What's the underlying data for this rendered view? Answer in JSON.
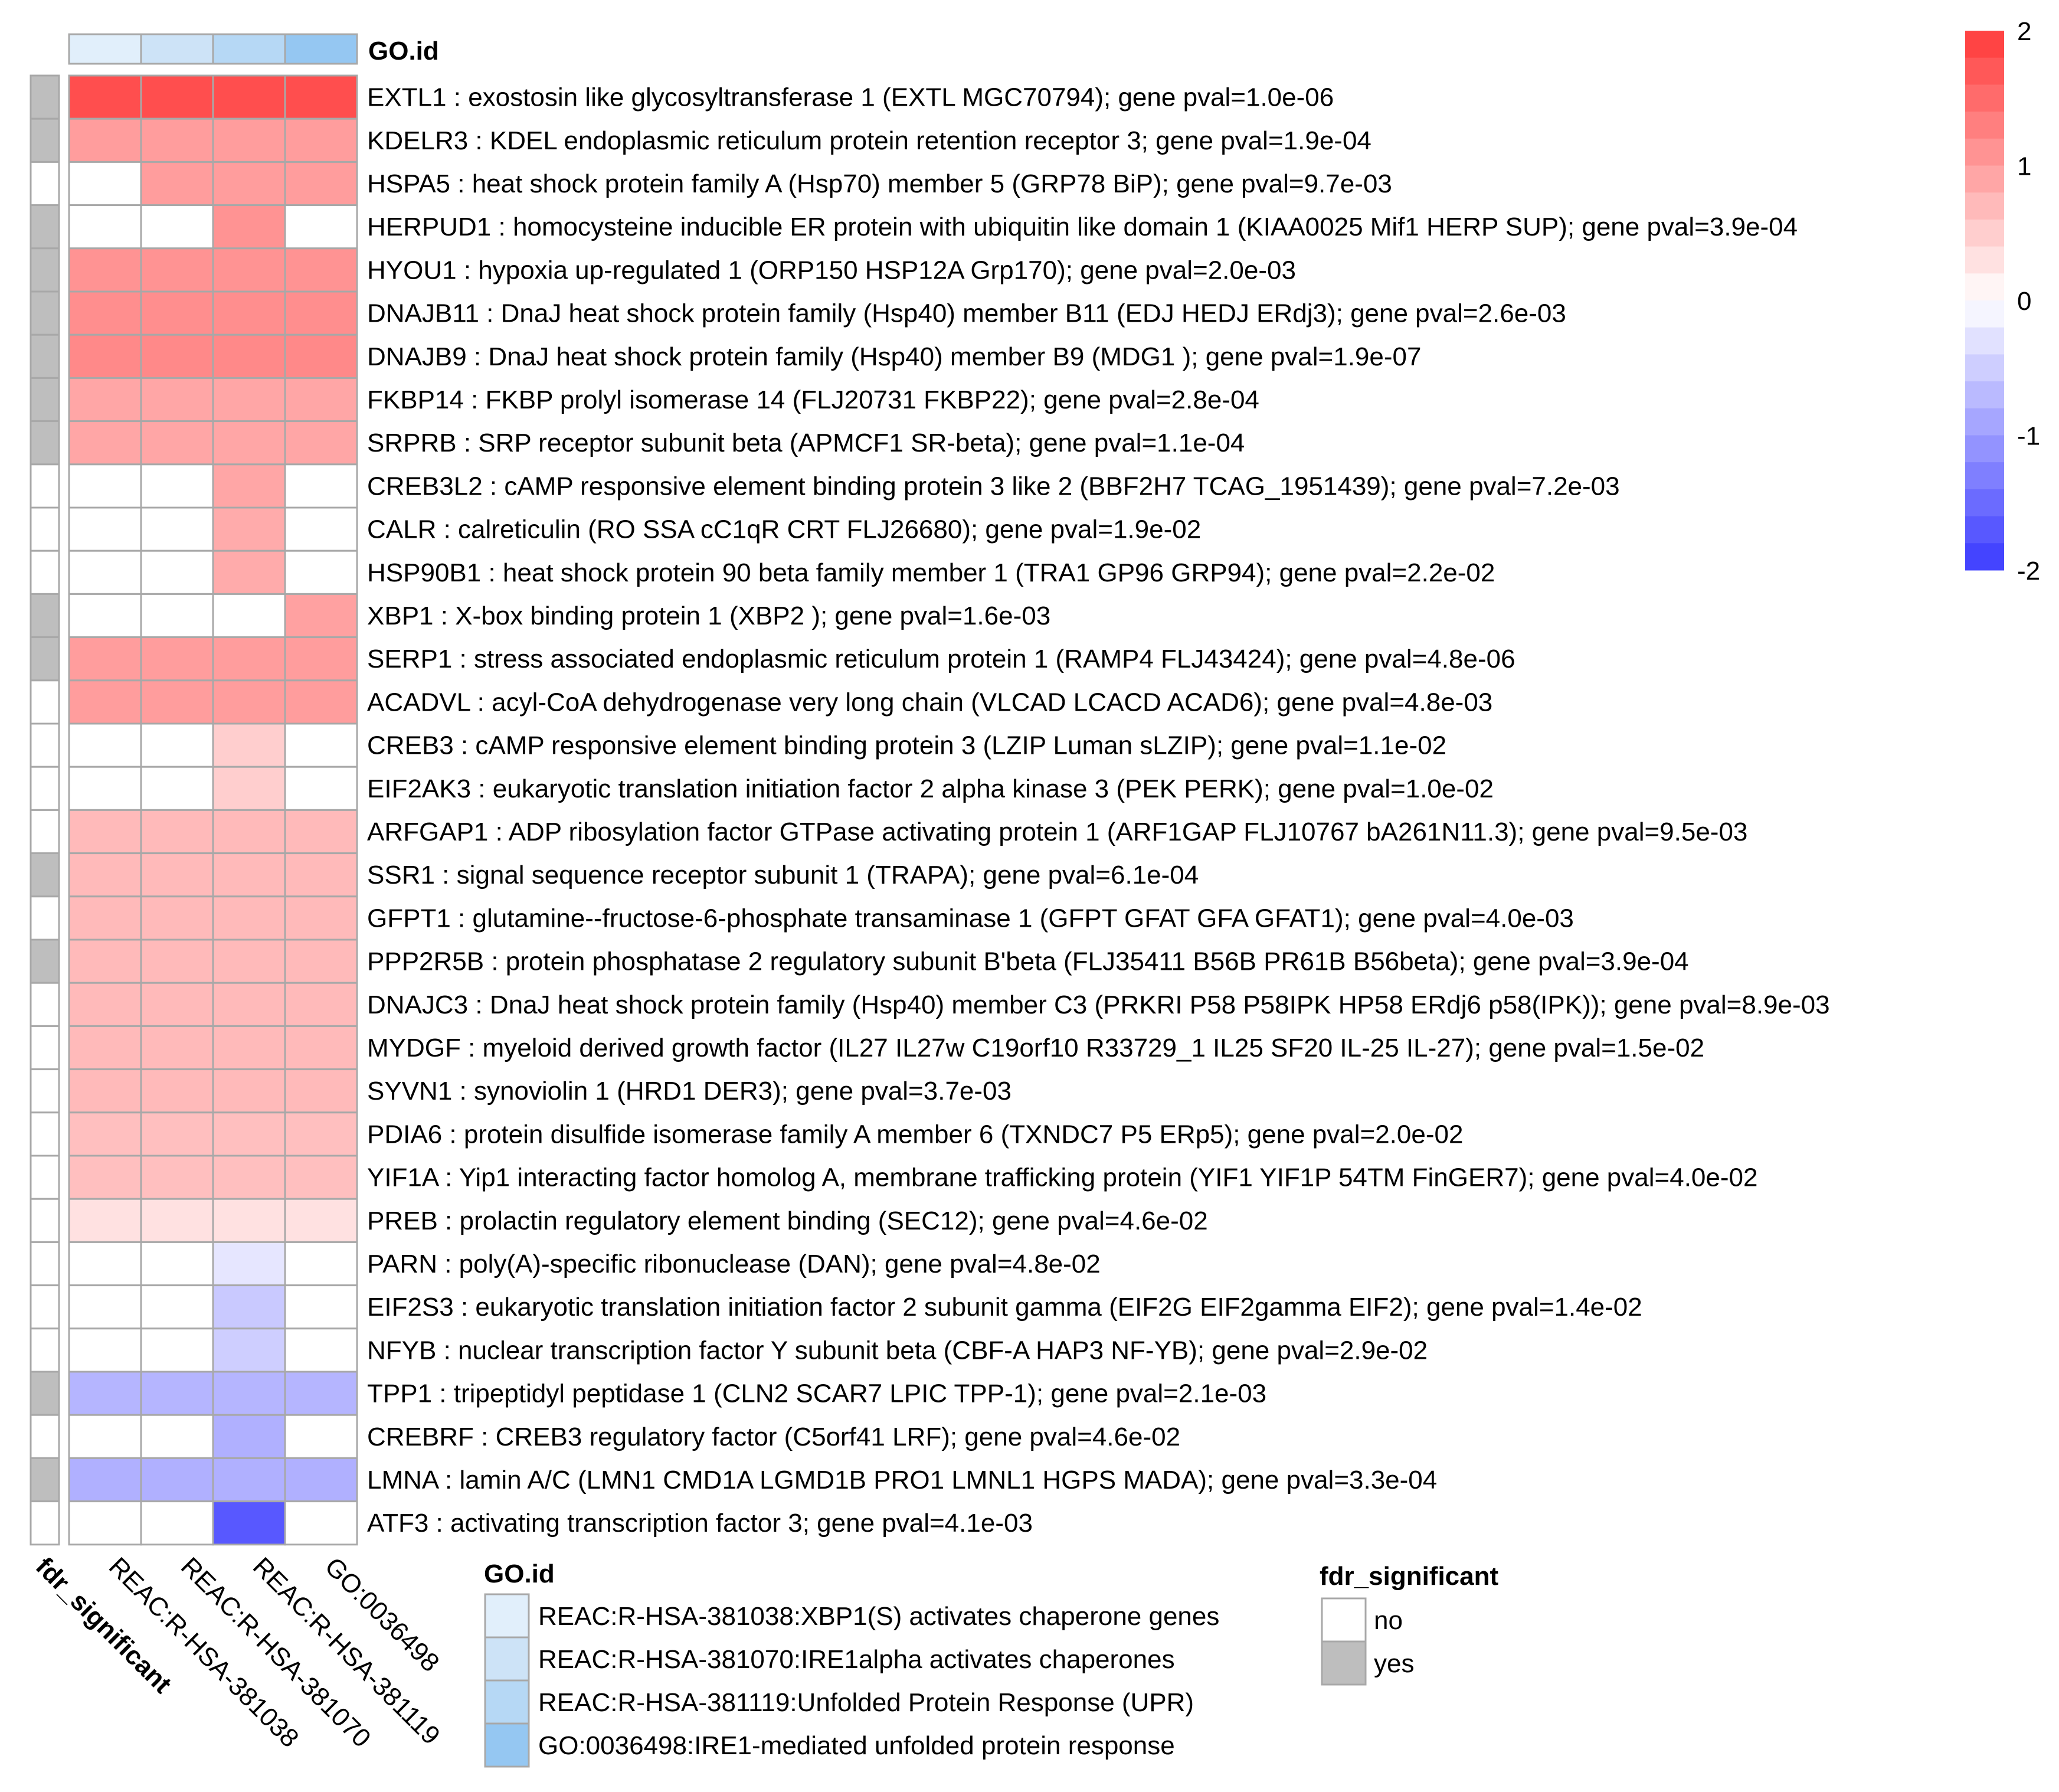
{
  "chart_data": {
    "type": "heatmap",
    "colors": {
      "high": "#FF3A3A",
      "mid": "#FFFFFF",
      "low": "#3A3AFF",
      "significant_yes": "#BEBEBE",
      "significant_no": "#FFFFFF",
      "grid": "#A8A8A8"
    },
    "value_range": [
      -2,
      2
    ],
    "scale_ticks": [
      "2",
      "1",
      "0",
      "-1",
      "-2"
    ],
    "top_annotation": {
      "title": "GO.id",
      "colors": [
        "#E1EFFB",
        "#CDE3F7",
        "#B6D8F5",
        "#95C7F2"
      ]
    },
    "columns": [
      "REAC:R-HSA-381038",
      "REAC:R-HSA-381070",
      "REAC:R-HSA-381119",
      "GO:0036498"
    ],
    "row_annotation_label": "fdr_significant",
    "rows": [
      {
        "label": "EXTL1 : exostosin like glycosyltransferase 1 (EXTL MGC70794); gene pval=1.0e-06",
        "significant": true,
        "values": [
          1.8,
          1.8,
          1.8,
          1.8
        ]
      },
      {
        "label": "KDELR3 : KDEL endoplasmic reticulum protein retention receptor 3; gene pval=1.9e-04",
        "significant": true,
        "values": [
          1.0,
          1.0,
          1.0,
          1.0
        ]
      },
      {
        "label": "HSPA5 : heat shock protein family A (Hsp70) member 5 (GRP78 BiP); gene pval=9.7e-03",
        "significant": false,
        "values": [
          0,
          1.0,
          1.0,
          1.0
        ]
      },
      {
        "label": "HERPUD1 : homocysteine inducible ER protein with ubiquitin like domain 1 (KIAA0025 Mif1 HERP SUP); gene pval=3.9e-04",
        "significant": true,
        "values": [
          0,
          0,
          1.1,
          0
        ]
      },
      {
        "label": "HYOU1 : hypoxia up-regulated 1 (ORP150 HSP12A Grp170); gene pval=2.0e-03",
        "significant": true,
        "values": [
          1.1,
          1.1,
          1.1,
          1.1
        ]
      },
      {
        "label": "DNAJB11 : DnaJ heat shock protein family (Hsp40) member B11 (EDJ HEDJ ERdj3); gene pval=2.6e-03",
        "significant": true,
        "values": [
          1.15,
          1.15,
          1.15,
          1.15
        ]
      },
      {
        "label": "DNAJB9 : DnaJ heat shock protein family (Hsp40) member B9 (MDG1 ); gene pval=1.9e-07",
        "significant": true,
        "values": [
          1.2,
          1.2,
          1.2,
          1.2
        ]
      },
      {
        "label": "FKBP14 : FKBP prolyl isomerase 14 (FLJ20731 FKBP22); gene pval=2.8e-04",
        "significant": true,
        "values": [
          0.9,
          0.9,
          0.9,
          0.9
        ]
      },
      {
        "label": "SRPRB : SRP receptor subunit beta (APMCF1 SR-beta); gene pval=1.1e-04",
        "significant": true,
        "values": [
          0.9,
          0.9,
          0.9,
          0.9
        ]
      },
      {
        "label": "CREB3L2 : cAMP responsive element binding protein 3 like 2 (BBF2H7 TCAG_1951439); gene pval=7.2e-03",
        "significant": false,
        "values": [
          0,
          0,
          0.9,
          0
        ]
      },
      {
        "label": "CALR : calreticulin (RO SSA cC1qR CRT FLJ26680); gene pval=1.9e-02",
        "significant": false,
        "values": [
          0,
          0,
          0.85,
          0
        ]
      },
      {
        "label": "HSP90B1 : heat shock protein 90 beta family member 1 (TRA1 GP96 GRP94); gene pval=2.2e-02",
        "significant": false,
        "values": [
          0,
          0,
          0.85,
          0
        ]
      },
      {
        "label": "XBP1 : X-box binding protein 1 (XBP2 ); gene pval=1.6e-03",
        "significant": true,
        "values": [
          0,
          0,
          0,
          0.95
        ]
      },
      {
        "label": "SERP1 : stress associated endoplasmic reticulum protein 1 (RAMP4 FLJ43424); gene pval=4.8e-06",
        "significant": true,
        "values": [
          1.0,
          1.0,
          1.0,
          1.0
        ]
      },
      {
        "label": "ACADVL : acyl-CoA dehydrogenase very long chain (VLCAD LCACD ACAD6); gene pval=4.8e-03",
        "significant": false,
        "values": [
          1.0,
          1.0,
          1.0,
          1.0
        ]
      },
      {
        "label": "CREB3 : cAMP responsive element binding protein 3 (LZIP Luman sLZIP); gene pval=1.1e-02",
        "significant": false,
        "values": [
          0,
          0,
          0.5,
          0
        ]
      },
      {
        "label": "EIF2AK3 : eukaryotic translation initiation factor 2 alpha kinase 3 (PEK PERK); gene pval=1.0e-02",
        "significant": false,
        "values": [
          0,
          0,
          0.5,
          0
        ]
      },
      {
        "label": "ARFGAP1 : ADP ribosylation factor GTPase activating protein 1 (ARF1GAP FLJ10767 bA261N11.3); gene pval=9.5e-03",
        "significant": false,
        "values": [
          0.7,
          0.7,
          0.7,
          0.7
        ]
      },
      {
        "label": "SSR1 : signal sequence receptor subunit 1 (TRAPA); gene pval=6.1e-04",
        "significant": true,
        "values": [
          0.7,
          0.7,
          0.7,
          0.7
        ]
      },
      {
        "label": "GFPT1 : glutamine--fructose-6-phosphate transaminase 1 (GFPT GFAT GFA GFAT1); gene pval=4.0e-03",
        "significant": false,
        "values": [
          0.7,
          0.7,
          0.7,
          0.7
        ]
      },
      {
        "label": "PPP2R5B : protein phosphatase 2 regulatory subunit B'beta (FLJ35411 B56B PR61B B56beta); gene pval=3.9e-04",
        "significant": true,
        "values": [
          0.7,
          0.7,
          0.7,
          0.7
        ]
      },
      {
        "label": "DNAJC3 : DnaJ heat shock protein family (Hsp40) member C3 (PRKRI P58 P58IPK HP58 ERdj6 p58(IPK)); gene pval=8.9e-03",
        "significant": false,
        "values": [
          0.7,
          0.7,
          0.7,
          0.7
        ]
      },
      {
        "label": "MYDGF : myeloid derived growth factor (IL27 IL27w C19orf10 R33729_1 IL25 SF20 IL-25 IL-27); gene pval=1.5e-02",
        "significant": false,
        "values": [
          0.7,
          0.7,
          0.7,
          0.7
        ]
      },
      {
        "label": "SYVN1 : synoviolin 1 (HRD1 DER3); gene pval=3.7e-03",
        "significant": false,
        "values": [
          0.7,
          0.7,
          0.7,
          0.7
        ]
      },
      {
        "label": "PDIA6 : protein disulfide isomerase family A member 6 (TXNDC7 P5 ERp5); gene pval=2.0e-02",
        "significant": false,
        "values": [
          0.65,
          0.65,
          0.65,
          0.65
        ]
      },
      {
        "label": "YIF1A : Yip1 interacting factor homolog A, membrane trafficking protein (YIF1 YIF1P 54TM FinGER7); gene pval=4.0e-02",
        "significant": false,
        "values": [
          0.65,
          0.65,
          0.65,
          0.65
        ]
      },
      {
        "label": "PREB : prolactin regulatory element binding (SEC12); gene pval=4.6e-02",
        "significant": false,
        "values": [
          0.3,
          0.3,
          0.3,
          0.3
        ]
      },
      {
        "label": "PARN : poly(A)-specific ribonuclease (DAN); gene pval=4.8e-02",
        "significant": false,
        "values": [
          0,
          0,
          -0.25,
          0
        ]
      },
      {
        "label": "EIF2S3 : eukaryotic translation initiation factor 2 subunit gamma (EIF2G EIF2gamma EIF2); gene pval=1.4e-02",
        "significant": false,
        "values": [
          0,
          0,
          -0.55,
          0
        ]
      },
      {
        "label": "NFYB : nuclear transcription factor Y subunit beta (CBF-A HAP3 NF-YB); gene pval=2.9e-02",
        "significant": false,
        "values": [
          0,
          0,
          -0.5,
          0
        ]
      },
      {
        "label": "TPP1 : tripeptidyl peptidase 1 (CLN2 SCAR7 LPIC TPP-1); gene pval=2.1e-03",
        "significant": true,
        "values": [
          -0.75,
          -0.75,
          -0.75,
          -0.75
        ]
      },
      {
        "label": "CREBRF : CREB3 regulatory factor (C5orf41 LRF); gene pval=4.6e-02",
        "significant": false,
        "values": [
          0,
          0,
          -0.8,
          0
        ]
      },
      {
        "label": "LMNA : lamin A/C (LMN1 CMD1A LGMD1B PRO1 LMNL1 HGPS MADA); gene pval=3.3e-04",
        "significant": true,
        "values": [
          -0.8,
          -0.8,
          -0.8,
          -0.8
        ]
      },
      {
        "label": "ATF3 : activating transcription factor 3; gene pval=4.1e-03",
        "significant": false,
        "values": [
          0,
          0,
          -1.7,
          0
        ]
      }
    ],
    "legend_goid": {
      "title": "GO.id",
      "entries": [
        "REAC:R-HSA-381038:XBP1(S) activates chaperone genes",
        "REAC:R-HSA-381070:IRE1alpha activates chaperones",
        "REAC:R-HSA-381119:Unfolded Protein Response (UPR)",
        "GO:0036498:IRE1-mediated unfolded protein response"
      ]
    },
    "legend_fdr": {
      "title": "fdr_significant",
      "entries": [
        "no",
        "yes"
      ]
    }
  }
}
